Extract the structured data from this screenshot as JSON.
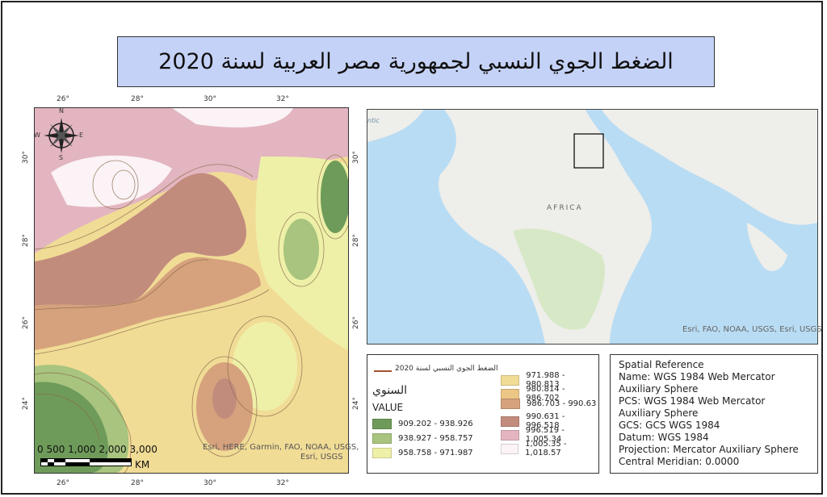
{
  "title": "الضغط الجوي النسبي لجمهورية مصر العربية لسنة 2020",
  "main_map": {
    "top_ticks": [
      "26°",
      "28°",
      "30°",
      "32°"
    ],
    "bottom_ticks": [
      "26°",
      "28°",
      "30°",
      "32°"
    ],
    "left_ticks": [
      "30°",
      "28°",
      "26°",
      "24°"
    ],
    "right_ticks": [
      "30°",
      "28°",
      "26°",
      "24°"
    ],
    "compass": {
      "n": "N",
      "s": "S",
      "e": "E",
      "w": "W"
    },
    "scale_labels": "0  500 1,000  2,000  3,000",
    "scale_unit": "KM",
    "attribution_line1": "Esri, HERE, Garmin, FAO, NOAA, USGS,",
    "attribution_line2": "Esri, USGS"
  },
  "inset_map": {
    "continent_label": "AFRICA",
    "ocean_fragment": "ntic",
    "attribution": "Esri, FAO, NOAA, USGS, Esri, USGS"
  },
  "legend": {
    "line_label": "الضغط الجوي النسبي لسنة 2020",
    "heading": "السنوي",
    "subheading": "VALUE",
    "classes": [
      {
        "label": "909.202 - 938.926",
        "color": "#6e9b5a"
      },
      {
        "label": "938.927 - 958.757",
        "color": "#a8c47e"
      },
      {
        "label": "958.758 - 971.987",
        "color": "#eef0a8"
      },
      {
        "label": "971.988 - 980.813",
        "color": "#f1dc96"
      },
      {
        "label": "980.814 - 986.702",
        "color": "#ecc685"
      },
      {
        "label": "986.703 - 990.63",
        "color": "#d6a27d"
      },
      {
        "label": "990.631 - 996.518",
        "color": "#c28c7d"
      },
      {
        "label": "996.519 - 1,005.34",
        "color": "#e3b5c0"
      },
      {
        "label": "1,005.35 - 1,018.57",
        "color": "#fbf3f6"
      }
    ]
  },
  "spatial_reference": {
    "heading": "Spatial Reference",
    "name": "Name: WGS 1984 Web Mercator Auxiliary Sphere",
    "pcs": "PCS: WGS 1984 Web Mercator Auxiliary Sphere",
    "gcs": "GCS: GCS WGS 1984",
    "datum": "Datum: WGS 1984",
    "projection": "Projection: Mercator Auxiliary Sphere",
    "central_meridian": "Central Meridian: 0.0000"
  }
}
